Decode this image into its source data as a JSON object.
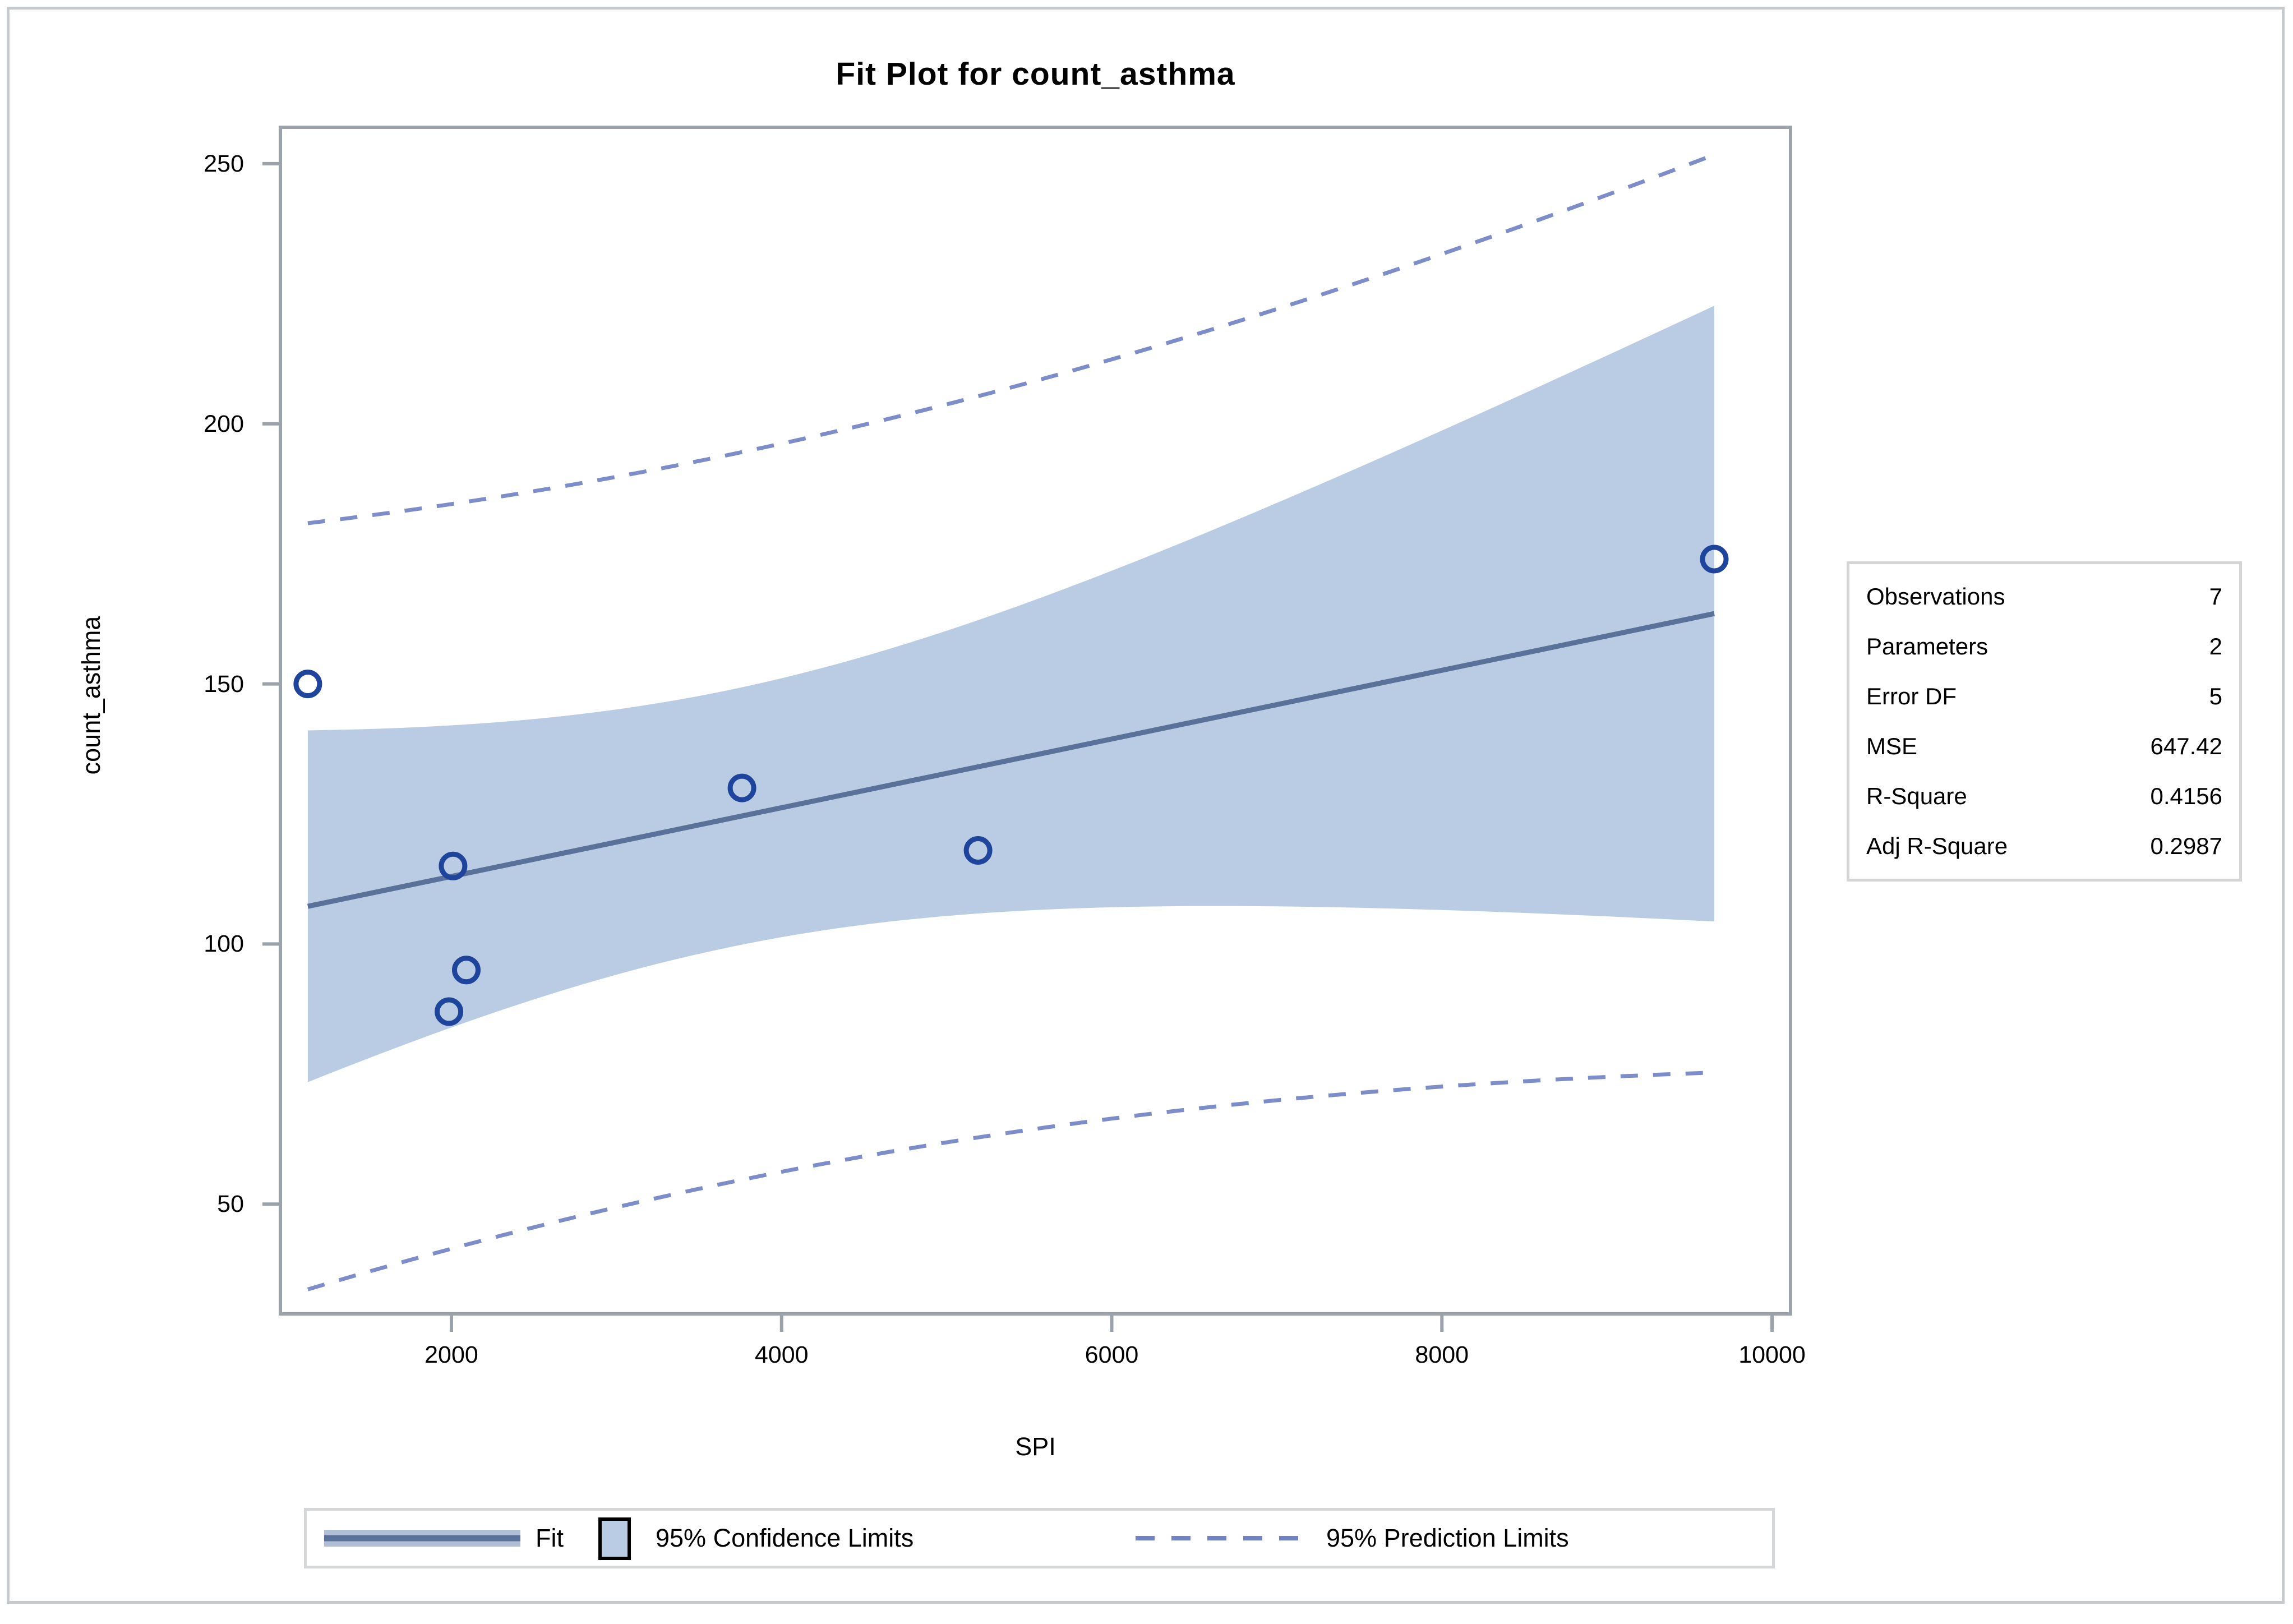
{
  "title": "Fit Plot for count_asthma",
  "axes": {
    "x": {
      "label": "SPI",
      "ticks": [
        2000,
        4000,
        6000,
        8000,
        10000
      ]
    },
    "y": {
      "label": "count_asthma",
      "ticks": [
        50,
        100,
        150,
        200,
        250
      ]
    }
  },
  "stats_box": {
    "rows": [
      {
        "label": "Observations",
        "value": "7"
      },
      {
        "label": "Parameters",
        "value": "2"
      },
      {
        "label": "Error DF",
        "value": "5"
      },
      {
        "label": "MSE",
        "value": "647.42"
      },
      {
        "label": "R-Square",
        "value": "0.4156"
      },
      {
        "label": "Adj R-Square",
        "value": "0.2987"
      }
    ]
  },
  "legend": {
    "fit_label": "Fit",
    "confidence_label": "95% Confidence Limits",
    "prediction_label": "95% Prediction Limits"
  },
  "colors": {
    "fit_line": "#5a7199",
    "fit_halo": "#b0bfd5",
    "confidence_band": "#b9cce4",
    "prediction_line": "#7183c5",
    "marker": "#1e459b",
    "axis": "#9ba2aa",
    "text": "#000000"
  },
  "chart_data": {
    "type": "scatter",
    "title": "Fit Plot for count_asthma",
    "xlabel": "SPI",
    "ylabel": "count_asthma",
    "xlim": [
      964,
      10112
    ],
    "ylim": [
      28.9,
      257
    ],
    "x_ticks": [
      2000,
      4000,
      6000,
      8000,
      10000
    ],
    "y_ticks": [
      50,
      100,
      150,
      200,
      250
    ],
    "grid": false,
    "legend_position": "bottom",
    "points": [
      {
        "spi": 1130,
        "count": 150
      },
      {
        "spi": 1985,
        "count": 87
      },
      {
        "spi": 2010,
        "count": 115
      },
      {
        "spi": 2090,
        "count": 95
      },
      {
        "spi": 3760,
        "count": 130
      },
      {
        "spi": 5190,
        "count": 118
      },
      {
        "spi": 9650,
        "count": 174
      }
    ],
    "fit": {
      "type": "linear-regression",
      "observations": 7,
      "parameters": 2,
      "error_df": 5,
      "mse": 647.42,
      "r_square": 0.4156,
      "adj_r_square": 0.2987
    },
    "bands": {
      "confidence_level": "95%",
      "confidence_band": true,
      "prediction_limits": true
    }
  }
}
